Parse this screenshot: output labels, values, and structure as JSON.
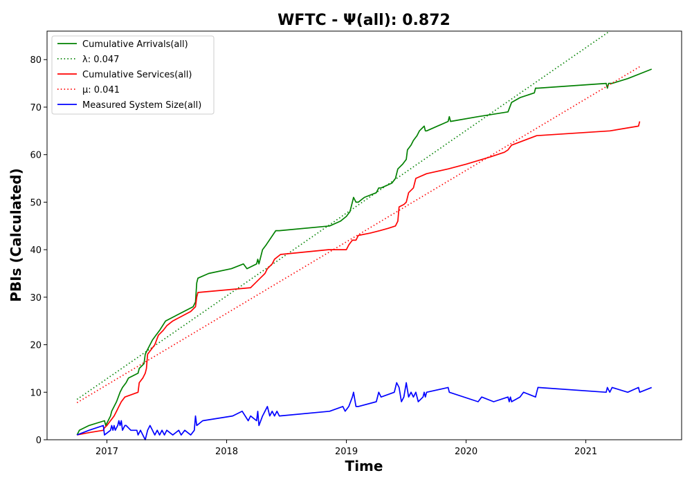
{
  "chart_data": {
    "type": "line",
    "title": "WFTC -  Ψ(all): 0.872",
    "xlabel": "Time",
    "ylabel": "PBIs (Calculated)",
    "xlim": [
      2016.5,
      2021.8
    ],
    "ylim": [
      0,
      86
    ],
    "x_ticks": [
      2017,
      2018,
      2019,
      2020,
      2021
    ],
    "y_ticks": [
      0,
      10,
      20,
      30,
      40,
      50,
      60,
      70,
      80
    ],
    "grid": false,
    "legend_position": "top-left",
    "series": [
      {
        "name": "Cumulative Arrivals(all)",
        "style": "solid",
        "color": "#008000",
        "x": [
          2016.75,
          2016.77,
          2016.85,
          2016.98,
          2016.99,
          2017.03,
          2017.04,
          2017.08,
          2017.11,
          2017.13,
          2017.16,
          2017.18,
          2017.26,
          2017.27,
          2017.31,
          2017.32,
          2017.34,
          2017.38,
          2017.41,
          2017.44,
          2017.49,
          2017.72,
          2017.74,
          2017.75,
          2017.76,
          2017.85,
          2018.04,
          2018.14,
          2018.17,
          2018.25,
          2018.26,
          2018.27,
          2018.3,
          2018.33,
          2018.41,
          2018.44,
          2018.86,
          2018.95,
          2019.0,
          2019.03,
          2019.05,
          2019.06,
          2019.08,
          2019.1,
          2019.15,
          2019.25,
          2019.27,
          2019.29,
          2019.38,
          2019.41,
          2019.43,
          2019.47,
          2019.5,
          2019.51,
          2019.54,
          2019.56,
          2019.59,
          2019.61,
          2019.65,
          2019.66,
          2019.67,
          2019.85,
          2019.86,
          2019.87,
          2020.1,
          2020.35,
          2020.38,
          2020.45,
          2020.57,
          2020.58,
          2020.6,
          2021.17,
          2021.18,
          2021.19,
          2021.22,
          2021.35,
          2021.55
        ],
        "y": [
          1,
          2,
          3,
          4,
          3,
          5,
          6,
          8,
          10,
          11,
          12,
          13,
          14,
          15,
          16,
          18,
          19,
          21,
          22,
          23,
          25,
          28,
          29,
          33,
          34,
          35,
          36,
          37,
          36,
          37,
          38,
          37,
          40,
          41,
          44,
          44,
          45,
          46,
          47,
          48,
          50,
          51,
          50,
          50,
          51,
          52,
          53,
          53,
          54,
          55,
          57,
          58,
          59,
          61,
          62,
          63,
          64,
          65,
          66,
          65,
          65,
          67,
          68,
          67,
          68,
          69,
          71,
          72,
          73,
          74,
          74,
          75,
          74,
          75,
          75,
          76,
          78
        ]
      },
      {
        "name": "λ: 0.047",
        "style": "dotted",
        "color": "#008000",
        "x": [
          2016.75,
          2021.2
        ],
        "y": [
          8.5,
          86
        ]
      },
      {
        "name": "Cumulative Services(all)",
        "style": "solid",
        "color": "#ff0000",
        "x": [
          2016.75,
          2016.85,
          2016.97,
          2016.98,
          2017.0,
          2017.03,
          2017.06,
          2017.08,
          2017.1,
          2017.12,
          2017.15,
          2017.26,
          2017.27,
          2017.3,
          2017.32,
          2017.33,
          2017.34,
          2017.4,
          2017.43,
          2017.47,
          2017.5,
          2017.55,
          2017.7,
          2017.74,
          2017.75,
          2017.76,
          2018.2,
          2018.24,
          2018.28,
          2018.32,
          2018.34,
          2018.38,
          2018.4,
          2018.45,
          2018.85,
          2019.0,
          2019.02,
          2019.05,
          2019.08,
          2019.1,
          2019.2,
          2019.28,
          2019.35,
          2019.41,
          2019.43,
          2019.44,
          2019.48,
          2019.5,
          2019.52,
          2019.56,
          2019.58,
          2019.67,
          2019.85,
          2020.0,
          2020.2,
          2020.32,
          2020.35,
          2020.38,
          2020.59,
          2021.2,
          2021.44,
          2021.45
        ],
        "y": [
          1,
          1.5,
          2,
          2.5,
          3,
          4,
          5,
          6,
          7,
          8,
          9,
          10,
          12,
          13,
          14,
          15,
          18,
          20,
          22,
          23,
          24,
          25,
          27,
          28,
          30,
          31,
          32,
          33,
          34,
          35,
          36,
          37,
          38,
          39,
          40,
          40,
          41,
          42,
          42,
          43,
          43.5,
          44,
          44.5,
          45,
          46,
          49,
          49.5,
          50,
          52,
          53,
          55,
          56,
          57,
          58,
          59.5,
          60.5,
          61,
          62,
          64,
          65,
          66,
          67
        ]
      },
      {
        "name": "μ: 0.041",
        "style": "dotted",
        "color": "#ff0000",
        "x": [
          2016.75,
          2021.45
        ],
        "y": [
          7.8,
          78.5
        ]
      },
      {
        "name": "Measured System Size(all)",
        "style": "solid",
        "color": "#0000ff",
        "x": [
          2016.75,
          2016.85,
          2016.97,
          2016.98,
          2017.03,
          2017.04,
          2017.05,
          2017.06,
          2017.07,
          2017.09,
          2017.1,
          2017.11,
          2017.12,
          2017.13,
          2017.15,
          2017.16,
          2017.2,
          2017.25,
          2017.26,
          2017.28,
          2017.3,
          2017.32,
          2017.34,
          2017.36,
          2017.38,
          2017.4,
          2017.42,
          2017.44,
          2017.46,
          2017.48,
          2017.5,
          2017.55,
          2017.6,
          2017.62,
          2017.65,
          2017.7,
          2017.73,
          2017.74,
          2017.75,
          2017.8,
          2018.05,
          2018.13,
          2018.18,
          2018.2,
          2018.25,
          2018.26,
          2018.27,
          2018.3,
          2018.32,
          2018.34,
          2018.36,
          2018.38,
          2018.4,
          2018.42,
          2018.44,
          2018.86,
          2018.97,
          2018.99,
          2019.02,
          2019.05,
          2019.06,
          2019.08,
          2019.1,
          2019.25,
          2019.27,
          2019.29,
          2019.4,
          2019.42,
          2019.44,
          2019.46,
          2019.48,
          2019.5,
          2019.52,
          2019.54,
          2019.56,
          2019.58,
          2019.6,
          2019.64,
          2019.65,
          2019.66,
          2019.67,
          2019.85,
          2019.86,
          2020.1,
          2020.13,
          2020.23,
          2020.35,
          2020.36,
          2020.37,
          2020.38,
          2020.45,
          2020.48,
          2020.58,
          2020.59,
          2020.6,
          2021.17,
          2021.18,
          2021.2,
          2021.22,
          2021.35,
          2021.44,
          2021.45,
          2021.55
        ],
        "y": [
          1,
          2,
          3,
          1,
          2,
          3,
          2,
          3,
          2,
          3,
          4,
          3,
          4,
          2,
          3,
          3,
          2,
          2,
          1,
          2,
          1,
          0,
          2,
          3,
          2,
          1,
          2,
          1,
          2,
          1,
          2,
          1,
          2,
          1,
          2,
          1,
          2,
          5,
          3,
          4,
          5,
          6,
          4,
          5,
          4,
          6,
          3,
          5,
          6,
          7,
          5,
          6,
          5,
          6,
          5,
          6,
          7,
          6,
          7,
          9,
          10,
          7,
          7,
          8,
          10,
          9,
          10,
          12,
          11,
          8,
          9,
          12,
          9,
          10,
          9,
          10,
          8,
          9,
          10,
          9,
          10,
          11,
          10,
          8,
          9,
          8,
          9,
          8,
          9,
          8,
          9,
          10,
          9,
          10,
          11,
          10,
          11,
          10,
          11,
          10,
          11,
          10,
          11
        ]
      }
    ]
  }
}
